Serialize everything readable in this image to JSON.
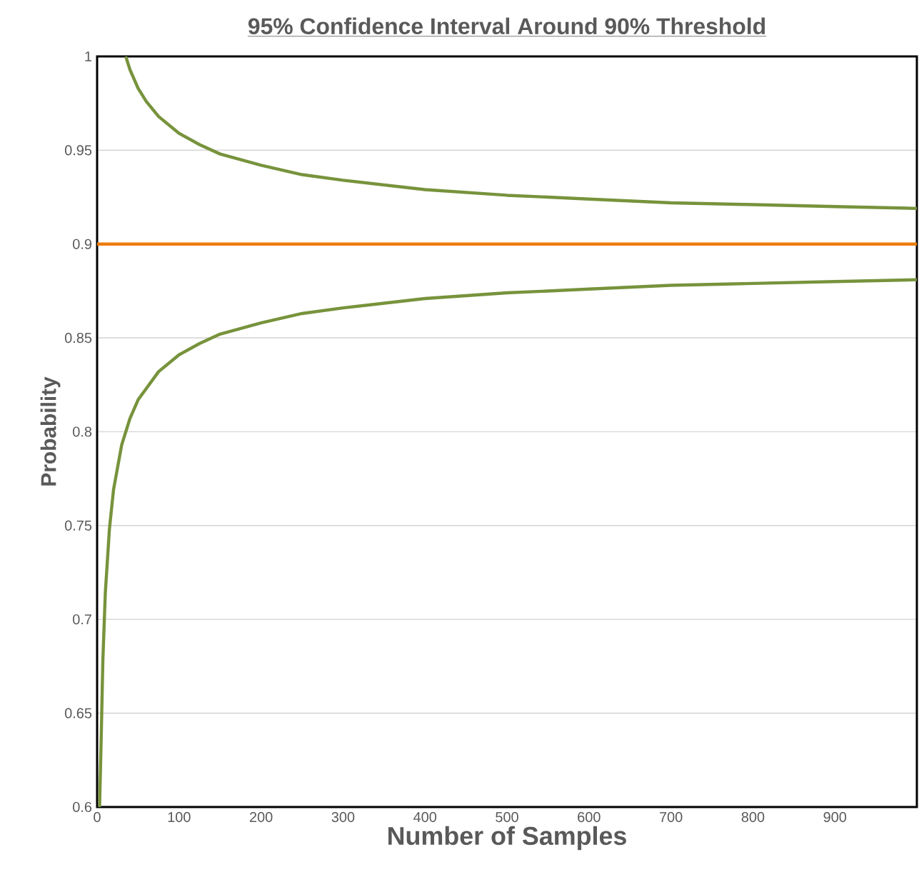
{
  "chart_data": {
    "type": "line",
    "title": "95% Confidence Interval Around 90% Threshold",
    "xlabel": "Number of Samples",
    "ylabel": "Probability",
    "series": [
      {
        "color": "#77933c",
        "x": [
          35,
          40,
          50,
          60,
          75,
          100,
          125,
          150,
          200,
          250,
          300,
          400,
          500,
          600,
          700,
          800,
          900,
          1000
        ],
        "values": [
          1.0,
          0.993,
          0.983,
          0.976,
          0.968,
          0.959,
          0.953,
          0.948,
          0.942,
          0.937,
          0.934,
          0.929,
          0.926,
          0.924,
          0.922,
          0.921,
          0.92,
          0.919
        ]
      },
      {
        "color": "#77933c",
        "x": [
          3,
          5,
          7,
          10,
          15,
          20,
          30,
          40,
          50,
          75,
          100,
          125,
          150,
          200,
          250,
          300,
          400,
          500,
          600,
          700,
          800,
          900,
          1000
        ],
        "values": [
          0.6,
          0.637,
          0.678,
          0.714,
          0.748,
          0.769,
          0.793,
          0.807,
          0.817,
          0.832,
          0.841,
          0.847,
          0.852,
          0.858,
          0.863,
          0.866,
          0.871,
          0.874,
          0.876,
          0.878,
          0.879,
          0.88,
          0.881
        ]
      }
    ],
    "xlim": [
      0,
      1000
    ],
    "xticks": [
      0,
      100,
      200,
      300,
      400,
      500,
      600,
      700,
      800,
      900
    ],
    "ylim": [
      0.6,
      1
    ],
    "yticks": [
      0.6,
      0.65,
      0.7,
      0.75,
      0.8,
      0.85,
      0.9,
      0.95,
      1
    ],
    "grid": "y",
    "marker": "none",
    "line_style": "solid",
    "ref_lines": [
      {
        "axis": "y",
        "value": 0.9,
        "color": "#ed7d0c"
      }
    ]
  }
}
